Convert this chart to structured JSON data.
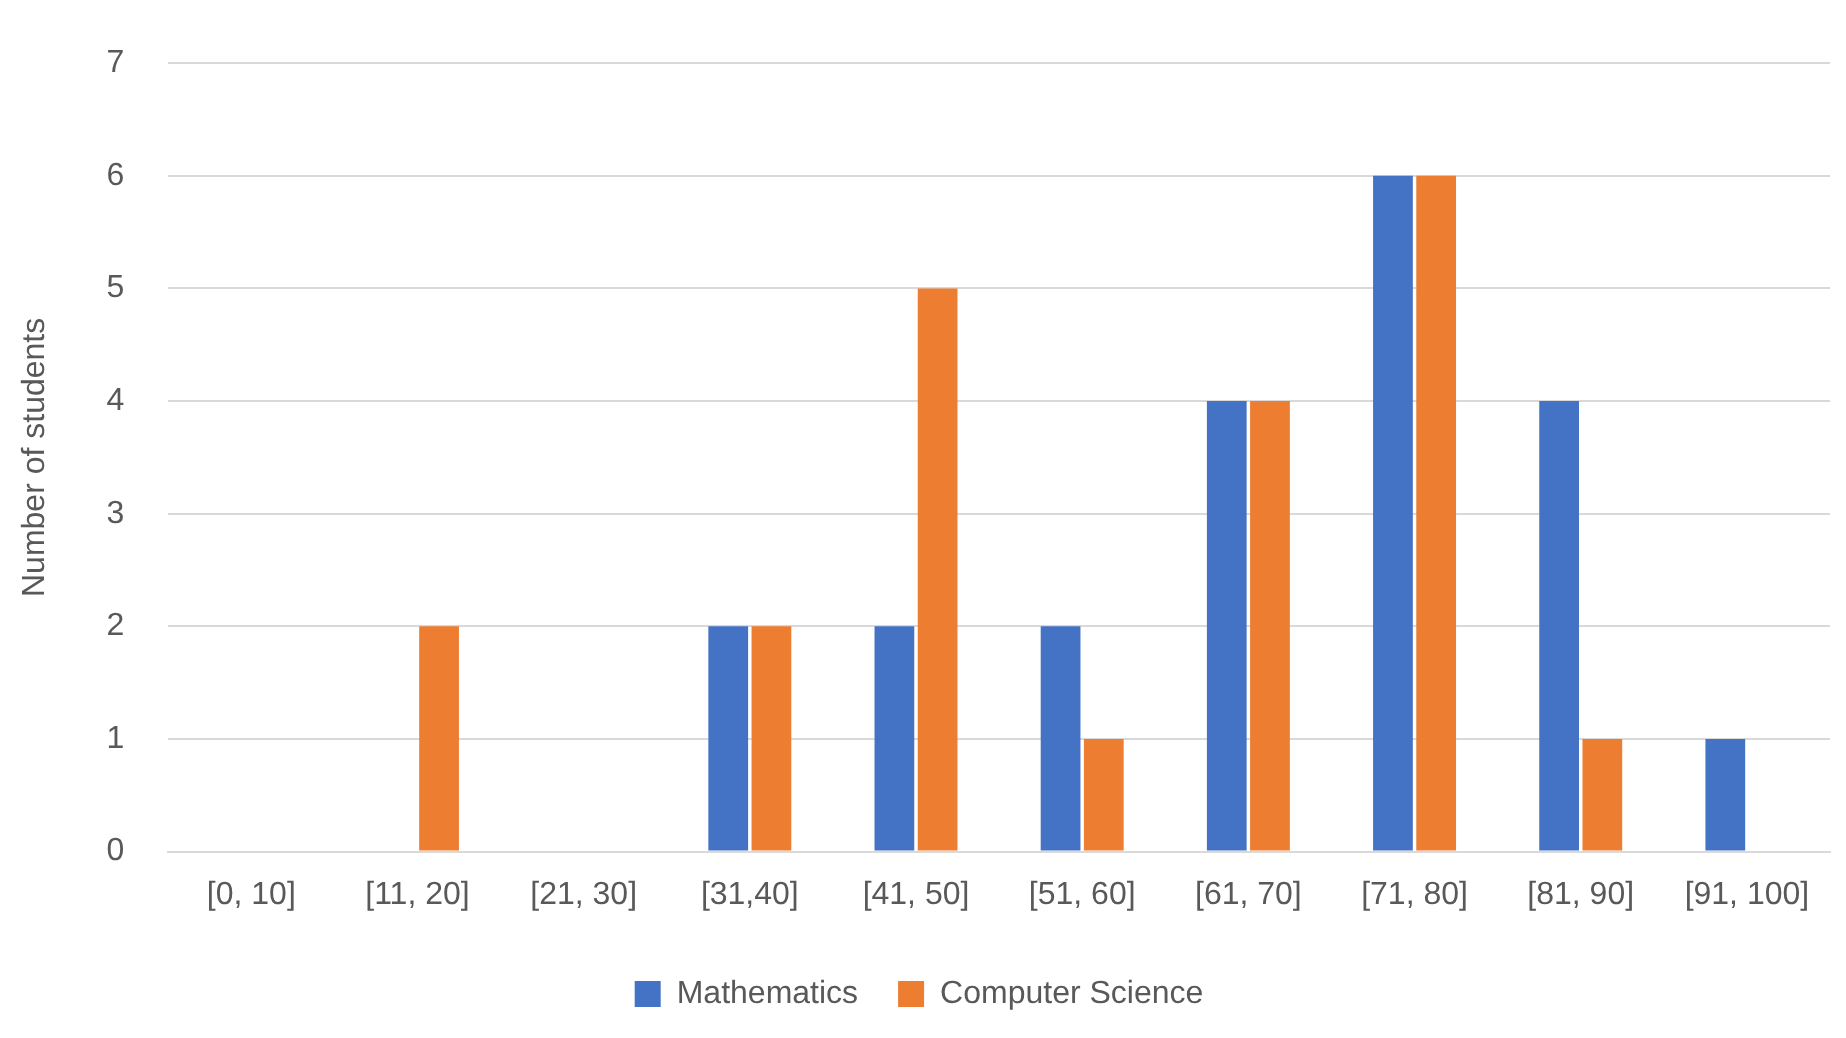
{
  "chart_data": {
    "type": "bar",
    "ylabel": "Number of students",
    "categories": [
      "[0, 10]",
      "[11, 20]",
      "[21, 30]",
      "[31,40]",
      "[41, 50]",
      "[51, 60]",
      "[61, 70]",
      "[71, 80]",
      "[81, 90]",
      "[91, 100]"
    ],
    "series": [
      {
        "name": "Mathematics",
        "color": "#4472c4",
        "values": [
          0,
          0,
          0,
          2,
          2,
          2,
          4,
          6,
          4,
          1
        ]
      },
      {
        "name": "Computer Science",
        "color": "#ed7d31",
        "values": [
          0,
          2,
          0,
          2,
          5,
          1,
          4,
          6,
          1,
          0
        ]
      }
    ],
    "ylim": [
      0,
      7
    ],
    "yticks": [
      0,
      1,
      2,
      3,
      4,
      5,
      6,
      7
    ],
    "grid": "y",
    "legend": "bottom"
  }
}
